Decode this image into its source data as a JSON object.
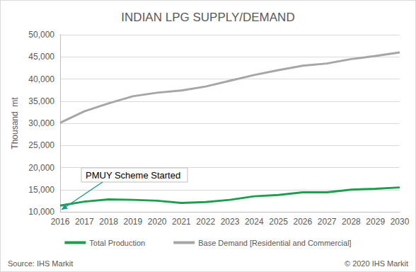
{
  "chart_data": {
    "type": "line",
    "title": "INDIAN LPG SUPPLY/DEMAND",
    "y_label": "Thousand  mt",
    "categories": [
      "2016",
      "2017",
      "2018",
      "2019",
      "2020",
      "2021",
      "2022",
      "2023",
      "2024",
      "2025",
      "2026",
      "2027",
      "2028",
      "2029",
      "2030"
    ],
    "series": [
      {
        "name": "Total Production",
        "color": "#1e9e4f",
        "values": [
          11400,
          12300,
          12800,
          12700,
          12500,
          12000,
          12200,
          12700,
          13500,
          13800,
          14400,
          14400,
          15000,
          15200,
          15500
        ]
      },
      {
        "name": "Base Demand [Residential and Commercial]",
        "color": "#a6a6a6",
        "values": [
          30100,
          32700,
          34500,
          36100,
          36900,
          37400,
          38300,
          39600,
          40900,
          42000,
          43000,
          43500,
          44500,
          45200,
          46000
        ]
      }
    ],
    "ylim": [
      10000,
      50000
    ],
    "yticks": [
      {
        "value": 10000,
        "label": "10,000"
      },
      {
        "value": 15000,
        "label": "15,000"
      },
      {
        "value": 20000,
        "label": "20,000"
      },
      {
        "value": 25000,
        "label": "25,000"
      },
      {
        "value": 30000,
        "label": "30,000"
      },
      {
        "value": 35000,
        "label": "35,000"
      },
      {
        "value": 40000,
        "label": "40,000"
      },
      {
        "value": 45000,
        "label": "45,000"
      },
      {
        "value": 50000,
        "label": "50,000"
      }
    ],
    "grid": true,
    "legend": "bottom",
    "annotations": [
      {
        "text": "PMUY Scheme Started",
        "x": "2016"
      }
    ],
    "source": "Source: IHS Markit",
    "credit": "© 2020 IHS Markit"
  }
}
